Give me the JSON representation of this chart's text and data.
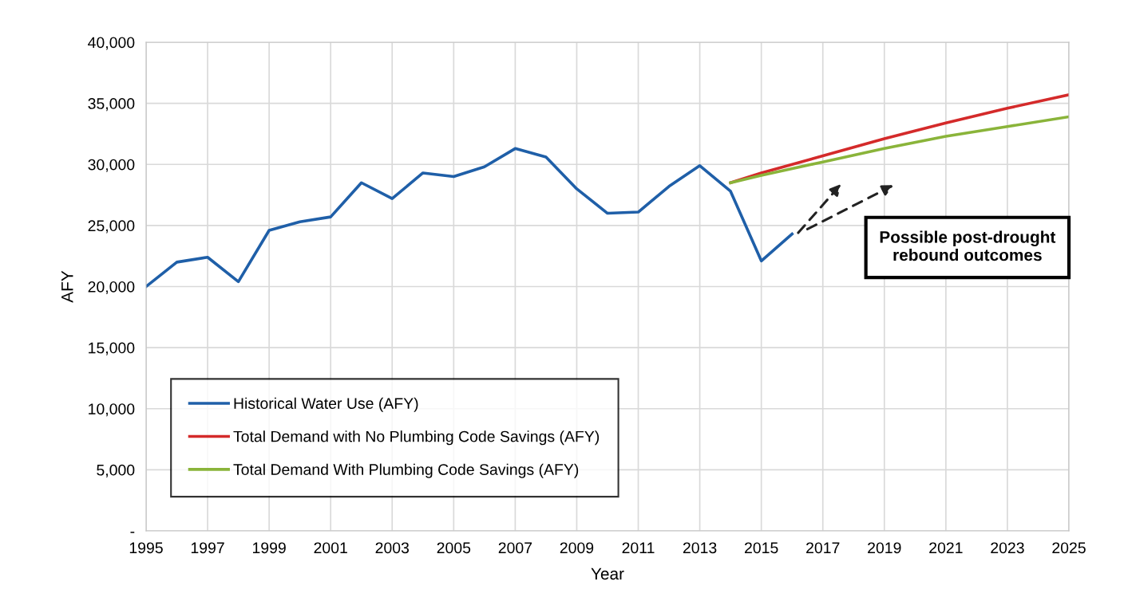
{
  "chart_data": {
    "type": "line",
    "xlabel": "Year",
    "ylabel": "AFY",
    "series": [
      {
        "name": "Historical Water Use (AFY)",
        "color": "#1f5fa8",
        "x": [
          1995,
          1996,
          1997,
          1998,
          1999,
          2000,
          2001,
          2002,
          2003,
          2004,
          2005,
          2006,
          2007,
          2008,
          2009,
          2010,
          2011,
          2012,
          2013,
          2014,
          2015,
          2016
        ],
        "values": [
          20000,
          22000,
          22400,
          20400,
          24600,
          25300,
          25700,
          28500,
          27200,
          29300,
          29000,
          29800,
          31300,
          30600,
          28000,
          26000,
          26100,
          28200,
          29900,
          27800,
          22100,
          24300
        ]
      },
      {
        "name": "Total Demand with No Plumbing Code Savings (AFY)",
        "color": "#d42a2a",
        "x": [
          2014,
          2015,
          2017,
          2019,
          2021,
          2023,
          2025
        ],
        "values": [
          28500,
          29300,
          30700,
          32100,
          33400,
          34600,
          35700
        ]
      },
      {
        "name": "Total Demand With Plumbing Code Savings (AFY)",
        "color": "#8ab43a",
        "x": [
          2014,
          2015,
          2017,
          2019,
          2021,
          2023,
          2025
        ],
        "values": [
          28500,
          29100,
          30200,
          31300,
          32300,
          33100,
          33900
        ]
      }
    ],
    "xlim": [
      1995,
      2025
    ],
    "xticks": [
      1995,
      1997,
      1999,
      2001,
      2003,
      2005,
      2007,
      2009,
      2011,
      2013,
      2015,
      2017,
      2019,
      2021,
      2023,
      2025
    ],
    "ylim": [
      0,
      40000
    ],
    "yticks": [
      {
        "value": 0,
        "label": "-"
      },
      {
        "value": 5000,
        "label": "5,000"
      },
      {
        "value": 10000,
        "label": "10,000"
      },
      {
        "value": 15000,
        "label": "15,000"
      },
      {
        "value": 20000,
        "label": "20,000"
      },
      {
        "value": 25000,
        "label": "25,000"
      },
      {
        "value": 30000,
        "label": "30,000"
      },
      {
        "value": 35000,
        "label": "35,000"
      },
      {
        "value": 40000,
        "label": "40,000"
      }
    ],
    "grid": true,
    "legend": "bottom left",
    "marker": "none",
    "line_style": "solid",
    "annotations": [
      "Possible post-drought\nrebound outcomes"
    ]
  }
}
